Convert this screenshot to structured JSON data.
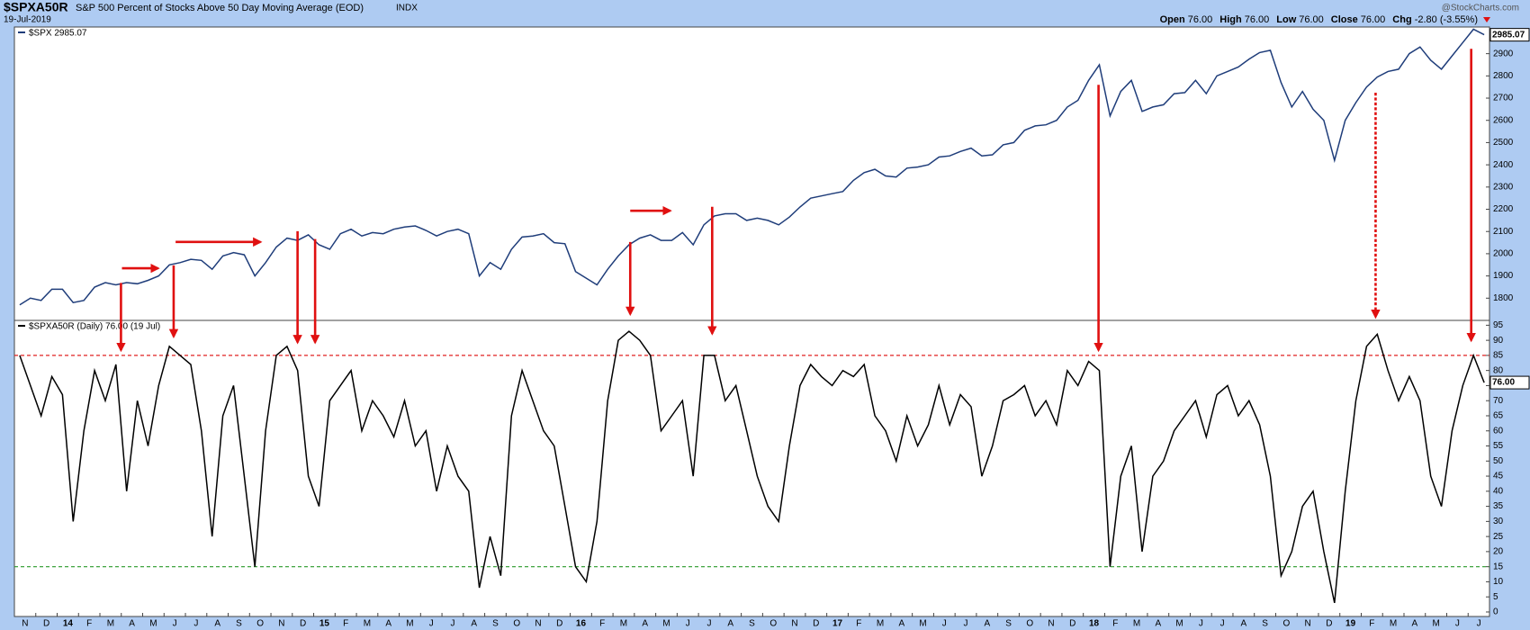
{
  "header": {
    "symbol": "$SPXA50R",
    "description": "S&P 500 Percent of Stocks Above 50 Day Moving Average (EOD)",
    "exchange": "INDX",
    "date": "19-Jul-2019",
    "watermark": "@StockCharts.com",
    "quote": [
      {
        "label": "Open",
        "value": "76.00"
      },
      {
        "label": "High",
        "value": "76.00"
      },
      {
        "label": "Low",
        "value": "76.00"
      },
      {
        "label": "Close",
        "value": "76.00"
      },
      {
        "label": "Chg",
        "value": "-2.80 (-3.55%)"
      }
    ]
  },
  "chart_data": [
    {
      "type": "line",
      "series": [
        {
          "name": "$SPX 2985.07",
          "color": "#1f3d7a",
          "values": [
            1770,
            1800,
            1790,
            1840,
            1840,
            1780,
            1790,
            1850,
            1870,
            1860,
            1870,
            1865,
            1880,
            1900,
            1950,
            1960,
            1975,
            1970,
            1930,
            1990,
            2005,
            1995,
            1900,
            1960,
            2030,
            2070,
            2060,
            2085,
            2040,
            2020,
            2090,
            2110,
            2080,
            2095,
            2090,
            2110,
            2120,
            2125,
            2105,
            2080,
            2100,
            2110,
            2090,
            1900,
            1960,
            1930,
            2020,
            2075,
            2080,
            2090,
            2050,
            2045,
            1920,
            1890,
            1860,
            1930,
            1990,
            2040,
            2070,
            2085,
            2060,
            2060,
            2095,
            2040,
            2130,
            2170,
            2180,
            2180,
            2150,
            2160,
            2150,
            2130,
            2165,
            2210,
            2250,
            2260,
            2270,
            2280,
            2330,
            2365,
            2380,
            2350,
            2345,
            2385,
            2390,
            2400,
            2435,
            2440,
            2460,
            2475,
            2440,
            2445,
            2490,
            2500,
            2555,
            2575,
            2580,
            2600,
            2660,
            2690,
            2780,
            2850,
            2620,
            2730,
            2780,
            2640,
            2660,
            2670,
            2720,
            2725,
            2780,
            2720,
            2800,
            2820,
            2840,
            2875,
            2905,
            2915,
            2770,
            2660,
            2730,
            2650,
            2600,
            2420,
            2600,
            2680,
            2750,
            2795,
            2820,
            2830,
            2900,
            2930,
            2870,
            2830,
            2890,
            2950,
            3010,
            2985
          ]
        }
      ],
      "last_label": "2985.07",
      "categories": [
        "N",
        null,
        "D",
        null,
        "14",
        null,
        "F",
        null,
        "M",
        null,
        "A",
        null,
        "M",
        null,
        "J",
        null,
        "J",
        null,
        "A",
        null,
        "S",
        null,
        "O",
        null,
        "N",
        null,
        "D",
        null,
        "15",
        null,
        "F",
        null,
        "M",
        null,
        "A",
        null,
        "M",
        null,
        "J",
        null,
        "J",
        null,
        "A",
        null,
        "S",
        null,
        "O",
        null,
        "N",
        null,
        "D",
        null,
        "16",
        null,
        "F",
        null,
        "M",
        null,
        "A",
        null,
        "M",
        null,
        "J",
        null,
        "J",
        null,
        "A",
        null,
        "S",
        null,
        "O",
        null,
        "N",
        null,
        "D",
        null,
        "17",
        null,
        "F",
        null,
        "M",
        null,
        "A",
        null,
        "M",
        null,
        "J",
        null,
        "J",
        null,
        "A",
        null,
        "S",
        null,
        "O",
        null,
        "N",
        null,
        "D",
        null,
        "18",
        null,
        "F",
        null,
        "M",
        null,
        "A",
        null,
        "M",
        null,
        "J",
        null,
        "J",
        null,
        "A",
        null,
        "S",
        null,
        "O",
        null,
        "N",
        null,
        "D",
        null,
        "19",
        null,
        "F",
        null,
        "M",
        null,
        "A",
        null,
        "M",
        null,
        "J",
        null,
        "J",
        null
      ],
      "ylim": [
        1700,
        3020
      ],
      "yticks": [
        1800,
        1900,
        2000,
        2100,
        2200,
        2300,
        2400,
        2500,
        2600,
        2700,
        2800,
        2900
      ],
      "grid": false
    },
    {
      "type": "line",
      "series": [
        {
          "name": "$SPXA50R (Daily) 76.00 (19 Jul)",
          "color": "#000000",
          "values": [
            85,
            75,
            65,
            78,
            72,
            30,
            60,
            80,
            70,
            82,
            40,
            70,
            55,
            75,
            88,
            85,
            82,
            60,
            25,
            65,
            75,
            45,
            15,
            60,
            85,
            88,
            80,
            45,
            35,
            70,
            75,
            80,
            60,
            70,
            65,
            58,
            70,
            55,
            60,
            40,
            55,
            45,
            40,
            8,
            25,
            12,
            65,
            80,
            70,
            60,
            55,
            35,
            15,
            10,
            30,
            70,
            90,
            93,
            90,
            85,
            60,
            65,
            70,
            45,
            85,
            85,
            70,
            75,
            60,
            45,
            35,
            30,
            55,
            75,
            82,
            78,
            75,
            80,
            78,
            82,
            65,
            60,
            50,
            65,
            55,
            62,
            75,
            62,
            72,
            68,
            45,
            55,
            70,
            72,
            75,
            65,
            70,
            62,
            80,
            75,
            83,
            80,
            15,
            45,
            55,
            20,
            45,
            50,
            60,
            65,
            70,
            58,
            72,
            75,
            65,
            70,
            62,
            45,
            12,
            20,
            35,
            40,
            20,
            3,
            40,
            70,
            88,
            92,
            80,
            70,
            78,
            70,
            45,
            35,
            60,
            75,
            85,
            76
          ]
        }
      ],
      "last_label": "76.00",
      "categories": [
        "N",
        null,
        "D",
        null,
        "14",
        null,
        "F",
        null,
        "M",
        null,
        "A",
        null,
        "M",
        null,
        "J",
        null,
        "J",
        null,
        "A",
        null,
        "S",
        null,
        "O",
        null,
        "N",
        null,
        "D",
        null,
        "15",
        null,
        "F",
        null,
        "M",
        null,
        "A",
        null,
        "M",
        null,
        "J",
        null,
        "J",
        null,
        "A",
        null,
        "S",
        null,
        "O",
        null,
        "N",
        null,
        "D",
        null,
        "16",
        null,
        "F",
        null,
        "M",
        null,
        "A",
        null,
        "M",
        null,
        "J",
        null,
        "J",
        null,
        "A",
        null,
        "S",
        null,
        "O",
        null,
        "N",
        null,
        "D",
        null,
        "17",
        null,
        "F",
        null,
        "M",
        null,
        "A",
        null,
        "M",
        null,
        "J",
        null,
        "J",
        null,
        "A",
        null,
        "S",
        null,
        "O",
        null,
        "N",
        null,
        "D",
        null,
        "18",
        null,
        "F",
        null,
        "M",
        null,
        "A",
        null,
        "M",
        null,
        "J",
        null,
        "J",
        null,
        "A",
        null,
        "S",
        null,
        "O",
        null,
        "N",
        null,
        "D",
        null,
        "19",
        null,
        "F",
        null,
        "M",
        null,
        "A",
        null,
        "M",
        null,
        "J",
        null,
        "J",
        null
      ],
      "ylim": [
        -1.5,
        96.6
      ],
      "yticks": [
        0,
        5,
        10,
        15,
        20,
        25,
        30,
        35,
        40,
        45,
        50,
        55,
        60,
        65,
        70,
        75,
        80,
        85,
        90,
        95
      ],
      "grid": false,
      "hlines": [
        {
          "value": 85,
          "color": "#e02020"
        },
        {
          "value": 15,
          "color": "#2a9a2a"
        }
      ]
    }
  ]
}
